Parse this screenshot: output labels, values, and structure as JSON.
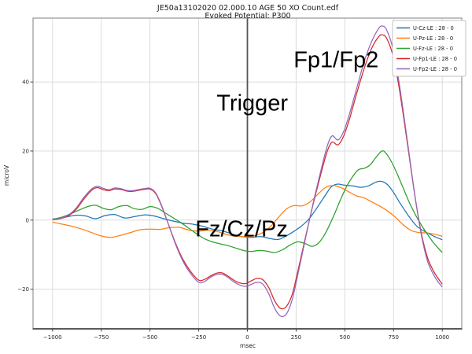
{
  "chart_data": {
    "type": "line",
    "title": "JE50a13102020 02.000.10 AGE 50  XO Count.edf",
    "subtitle": "Evoked Potential: P300",
    "xlabel": "msec",
    "ylabel": "microV",
    "xlim": [
      -1100,
      1100
    ],
    "ylim": [
      -31.5,
      58.5
    ],
    "xticks": [
      -1000,
      -750,
      -500,
      -250,
      0,
      250,
      500,
      750,
      1000
    ],
    "xtick_labels": [
      "−1000",
      "−750",
      "−500",
      "−250",
      "0",
      "250",
      "500",
      "750",
      "1000"
    ],
    "yticks": [
      -20,
      0,
      20,
      40
    ],
    "ytick_labels": [
      "−20",
      "0",
      "20",
      "40"
    ],
    "grid": true,
    "grid_color": "#dcdcdc",
    "trigger_line_x": 0,
    "trigger_line_color": "#555555",
    "spine_color": "#8c8c8c",
    "legend_position": "top-right",
    "annotations": [
      {
        "text": "Trigger",
        "x": 25,
        "y": 34
      },
      {
        "text": "Fp1/Fp2",
        "x": 455,
        "y": 46.5
      },
      {
        "text": "Fz/Cz/Pz",
        "x": -30,
        "y": -2.5
      }
    ],
    "series": [
      {
        "name": "U-Cz-LE : 28 - 0",
        "electrode": "Cz",
        "color": "#1f77b4",
        "points": [
          [
            -1000,
            0.3
          ],
          [
            -940,
            0.8
          ],
          [
            -880,
            1.4
          ],
          [
            -830,
            1.2
          ],
          [
            -780,
            0.4
          ],
          [
            -730,
            1.3
          ],
          [
            -680,
            1.6
          ],
          [
            -630,
            0.6
          ],
          [
            -580,
            1.0
          ],
          [
            -530,
            1.5
          ],
          [
            -480,
            1.2
          ],
          [
            -430,
            0.4
          ],
          [
            -380,
            -0.3
          ],
          [
            -330,
            -0.9
          ],
          [
            -280,
            -1.2
          ],
          [
            -230,
            -1.8
          ],
          [
            -180,
            -2.6
          ],
          [
            -130,
            -3.1
          ],
          [
            -80,
            -4.0
          ],
          [
            -30,
            -4.8
          ],
          [
            20,
            -5.0
          ],
          [
            70,
            -4.8
          ],
          [
            120,
            -5.4
          ],
          [
            160,
            -5.6
          ],
          [
            200,
            -4.6
          ],
          [
            240,
            -3.2
          ],
          [
            280,
            -1.6
          ],
          [
            320,
            0.6
          ],
          [
            360,
            3.8
          ],
          [
            400,
            7.2
          ],
          [
            430,
            9.6
          ],
          [
            460,
            10.4
          ],
          [
            500,
            10.1
          ],
          [
            540,
            9.9
          ],
          [
            580,
            9.5
          ],
          [
            620,
            9.9
          ],
          [
            660,
            11.0
          ],
          [
            690,
            11.2
          ],
          [
            720,
            10.2
          ],
          [
            750,
            8.0
          ],
          [
            780,
            5.2
          ],
          [
            810,
            2.6
          ],
          [
            840,
            0.2
          ],
          [
            870,
            -1.8
          ],
          [
            900,
            -3.0
          ],
          [
            940,
            -4.2
          ],
          [
            970,
            -5.0
          ],
          [
            1000,
            -5.7
          ]
        ]
      },
      {
        "name": "U-Pz-LE : 28 - 0",
        "electrode": "Pz",
        "color": "#ff7f0e",
        "points": [
          [
            -1000,
            -0.6
          ],
          [
            -950,
            -1.2
          ],
          [
            -900,
            -1.8
          ],
          [
            -850,
            -2.6
          ],
          [
            -800,
            -3.6
          ],
          [
            -750,
            -4.6
          ],
          [
            -700,
            -5.0
          ],
          [
            -650,
            -4.4
          ],
          [
            -600,
            -3.6
          ],
          [
            -550,
            -2.8
          ],
          [
            -500,
            -2.6
          ],
          [
            -450,
            -2.7
          ],
          [
            -400,
            -2.2
          ],
          [
            -350,
            -2.1
          ],
          [
            -300,
            -2.9
          ],
          [
            -250,
            -3.2
          ],
          [
            -200,
            -2.9
          ],
          [
            -150,
            -3.4
          ],
          [
            -100,
            -4.3
          ],
          [
            -50,
            -4.7
          ],
          [
            0,
            -4.8
          ],
          [
            40,
            -4.5
          ],
          [
            80,
            -3.6
          ],
          [
            120,
            -1.8
          ],
          [
            160,
            0.8
          ],
          [
            200,
            3.2
          ],
          [
            240,
            4.2
          ],
          [
            280,
            4.1
          ],
          [
            320,
            5.2
          ],
          [
            360,
            7.4
          ],
          [
            400,
            9.4
          ],
          [
            440,
            10.0
          ],
          [
            480,
            9.4
          ],
          [
            520,
            8.2
          ],
          [
            560,
            7.0
          ],
          [
            600,
            6.4
          ],
          [
            640,
            5.2
          ],
          [
            680,
            4.0
          ],
          [
            720,
            2.6
          ],
          [
            760,
            0.8
          ],
          [
            800,
            -1.4
          ],
          [
            840,
            -3.0
          ],
          [
            880,
            -3.6
          ],
          [
            920,
            -3.7
          ],
          [
            960,
            -4.1
          ],
          [
            1000,
            -4.7
          ]
        ]
      },
      {
        "name": "U-Fz-LE : 28 - 0",
        "electrode": "Fz",
        "color": "#2ca02c",
        "points": [
          [
            -1000,
            0.2
          ],
          [
            -950,
            0.9
          ],
          [
            -900,
            2.0
          ],
          [
            -860,
            3.0
          ],
          [
            -820,
            3.9
          ],
          [
            -780,
            4.3
          ],
          [
            -740,
            3.4
          ],
          [
            -700,
            3.0
          ],
          [
            -660,
            3.9
          ],
          [
            -620,
            4.2
          ],
          [
            -580,
            3.3
          ],
          [
            -540,
            3.1
          ],
          [
            -500,
            3.9
          ],
          [
            -460,
            3.4
          ],
          [
            -420,
            2.0
          ],
          [
            -380,
            0.6
          ],
          [
            -340,
            -0.8
          ],
          [
            -300,
            -2.4
          ],
          [
            -260,
            -4.0
          ],
          [
            -220,
            -5.4
          ],
          [
            -180,
            -6.3
          ],
          [
            -140,
            -6.9
          ],
          [
            -100,
            -7.4
          ],
          [
            -60,
            -8.1
          ],
          [
            -20,
            -8.8
          ],
          [
            20,
            -9.1
          ],
          [
            60,
            -8.8
          ],
          [
            100,
            -9.0
          ],
          [
            140,
            -9.4
          ],
          [
            180,
            -8.6
          ],
          [
            220,
            -7.2
          ],
          [
            260,
            -6.3
          ],
          [
            300,
            -6.9
          ],
          [
            330,
            -7.6
          ],
          [
            360,
            -6.9
          ],
          [
            390,
            -4.8
          ],
          [
            420,
            -1.6
          ],
          [
            450,
            2.2
          ],
          [
            480,
            6.2
          ],
          [
            510,
            9.8
          ],
          [
            540,
            12.6
          ],
          [
            570,
            14.6
          ],
          [
            600,
            15.0
          ],
          [
            630,
            16.0
          ],
          [
            660,
            18.2
          ],
          [
            690,
            20.0
          ],
          [
            710,
            19.4
          ],
          [
            740,
            16.8
          ],
          [
            770,
            13.2
          ],
          [
            800,
            9.2
          ],
          [
            830,
            5.2
          ],
          [
            860,
            1.8
          ],
          [
            890,
            -1.2
          ],
          [
            920,
            -3.8
          ],
          [
            950,
            -6.2
          ],
          [
            980,
            -8.2
          ],
          [
            1000,
            -9.4
          ]
        ]
      },
      {
        "name": "U-Fp1-LE : 28 - 0",
        "electrode": "Fp1",
        "color": "#d62728",
        "points": [
          [
            -1000,
            0.1
          ],
          [
            -960,
            0.4
          ],
          [
            -920,
            1.2
          ],
          [
            -880,
            3.0
          ],
          [
            -840,
            6.0
          ],
          [
            -800,
            8.6
          ],
          [
            -770,
            9.4
          ],
          [
            -740,
            8.8
          ],
          [
            -710,
            8.5
          ],
          [
            -680,
            9.0
          ],
          [
            -650,
            8.9
          ],
          [
            -620,
            8.4
          ],
          [
            -590,
            8.3
          ],
          [
            -560,
            8.6
          ],
          [
            -530,
            8.9
          ],
          [
            -500,
            9.0
          ],
          [
            -470,
            7.6
          ],
          [
            -440,
            4.0
          ],
          [
            -410,
            -0.5
          ],
          [
            -370,
            -6.5
          ],
          [
            -330,
            -11.5
          ],
          [
            -290,
            -15.0
          ],
          [
            -250,
            -17.4
          ],
          [
            -220,
            -17.2
          ],
          [
            -190,
            -16.2
          ],
          [
            -160,
            -15.4
          ],
          [
            -130,
            -15.3
          ],
          [
            -100,
            -16.2
          ],
          [
            -70,
            -17.4
          ],
          [
            -40,
            -18.2
          ],
          [
            -10,
            -18.4
          ],
          [
            20,
            -17.6
          ],
          [
            50,
            -16.9
          ],
          [
            80,
            -17.3
          ],
          [
            110,
            -19.6
          ],
          [
            140,
            -23.4
          ],
          [
            170,
            -25.6
          ],
          [
            200,
            -25.0
          ],
          [
            230,
            -21.5
          ],
          [
            260,
            -14.5
          ],
          [
            290,
            -7.0
          ],
          [
            320,
            0.5
          ],
          [
            350,
            7.5
          ],
          [
            380,
            14.0
          ],
          [
            410,
            20.0
          ],
          [
            435,
            22.6
          ],
          [
            465,
            21.8
          ],
          [
            495,
            24.5
          ],
          [
            525,
            29.5
          ],
          [
            560,
            36.5
          ],
          [
            600,
            44.0
          ],
          [
            640,
            50.0
          ],
          [
            675,
            53.2
          ],
          [
            695,
            53.6
          ],
          [
            715,
            52.6
          ],
          [
            745,
            48.0
          ],
          [
            775,
            39.5
          ],
          [
            805,
            28.5
          ],
          [
            835,
            16.5
          ],
          [
            865,
            5.0
          ],
          [
            895,
            -4.5
          ],
          [
            925,
            -11.0
          ],
          [
            955,
            -14.8
          ],
          [
            980,
            -17.0
          ],
          [
            1000,
            -18.6
          ]
        ]
      },
      {
        "name": "U-Fp2-LE : 28 - 0",
        "electrode": "Fp2",
        "color": "#9467bd",
        "points": [
          [
            -1000,
            0.1
          ],
          [
            -960,
            0.5
          ],
          [
            -920,
            1.4
          ],
          [
            -880,
            3.4
          ],
          [
            -840,
            6.5
          ],
          [
            -800,
            9.0
          ],
          [
            -770,
            9.8
          ],
          [
            -740,
            9.2
          ],
          [
            -710,
            8.8
          ],
          [
            -680,
            9.3
          ],
          [
            -650,
            9.1
          ],
          [
            -620,
            8.6
          ],
          [
            -590,
            8.5
          ],
          [
            -560,
            8.8
          ],
          [
            -530,
            9.1
          ],
          [
            -500,
            9.2
          ],
          [
            -470,
            7.8
          ],
          [
            -440,
            4.2
          ],
          [
            -410,
            -0.5
          ],
          [
            -370,
            -6.8
          ],
          [
            -330,
            -12.0
          ],
          [
            -290,
            -15.6
          ],
          [
            -250,
            -18.0
          ],
          [
            -220,
            -17.8
          ],
          [
            -190,
            -16.6
          ],
          [
            -160,
            -15.8
          ],
          [
            -130,
            -15.7
          ],
          [
            -100,
            -16.6
          ],
          [
            -70,
            -17.9
          ],
          [
            -40,
            -18.8
          ],
          [
            -10,
            -19.2
          ],
          [
            20,
            -18.6
          ],
          [
            50,
            -18.0
          ],
          [
            80,
            -18.6
          ],
          [
            110,
            -21.4
          ],
          [
            140,
            -25.6
          ],
          [
            170,
            -27.8
          ],
          [
            200,
            -27.2
          ],
          [
            230,
            -23.0
          ],
          [
            260,
            -15.5
          ],
          [
            290,
            -7.5
          ],
          [
            320,
            0.5
          ],
          [
            350,
            8.0
          ],
          [
            380,
            15.0
          ],
          [
            410,
            21.5
          ],
          [
            435,
            24.4
          ],
          [
            465,
            23.2
          ],
          [
            495,
            25.8
          ],
          [
            525,
            31.0
          ],
          [
            560,
            38.0
          ],
          [
            600,
            46.0
          ],
          [
            640,
            52.0
          ],
          [
            675,
            55.6
          ],
          [
            695,
            56.2
          ],
          [
            715,
            55.0
          ],
          [
            745,
            50.0
          ],
          [
            775,
            41.0
          ],
          [
            805,
            29.5
          ],
          [
            835,
            17.0
          ],
          [
            865,
            5.0
          ],
          [
            895,
            -5.0
          ],
          [
            925,
            -12.0
          ],
          [
            955,
            -15.8
          ],
          [
            980,
            -18.0
          ],
          [
            1000,
            -19.4
          ]
        ]
      }
    ]
  }
}
